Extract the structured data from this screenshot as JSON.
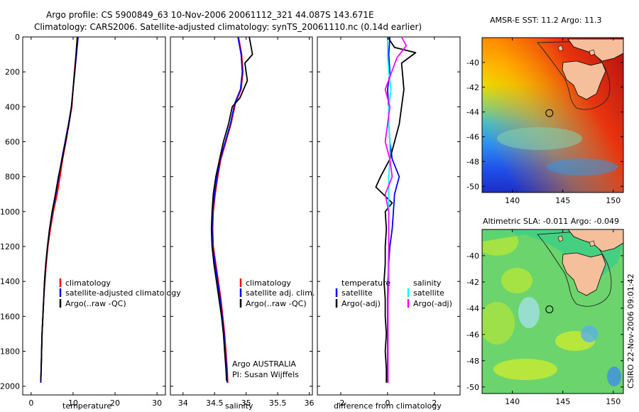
{
  "header": {
    "line1": "Argo profile: CS 5900849_63 10-Nov-2006 20061112_321 44.087S 143.671E",
    "line2": "Climatology: CARS2006. Satellite-adjusted climatology: synTS_20061110.nc (0.14d earlier)"
  },
  "colors": {
    "clim": "#ff0000",
    "sat": "#0000ff",
    "argo": "#000000",
    "sal_sat": "#00ffff",
    "sal_argo": "#ff00ff"
  },
  "chart_data": [
    {
      "id": "temperature",
      "type": "line",
      "xlabel": "temperature",
      "xlim": [
        -2,
        32
      ],
      "ylim": [
        2050,
        0
      ],
      "xticks": [
        0,
        10,
        20,
        30
      ],
      "yticks": [
        0,
        200,
        400,
        600,
        800,
        1000,
        1200,
        1400,
        1600,
        1800,
        2000
      ],
      "series": [
        {
          "name": "climatology",
          "color_key": "clim",
          "points": [
            [
              11,
              0
            ],
            [
              10.7,
              100
            ],
            [
              10.3,
              200
            ],
            [
              10,
              300
            ],
            [
              9.7,
              400
            ],
            [
              9,
              500
            ],
            [
              8.3,
              600
            ],
            [
              7.5,
              700
            ],
            [
              6.9,
              800
            ],
            [
              6.2,
              900
            ],
            [
              5.3,
              1000
            ],
            [
              4.6,
              1100
            ],
            [
              4,
              1200
            ],
            [
              3.6,
              1300
            ],
            [
              3.3,
              1400
            ],
            [
              3,
              1500
            ],
            [
              2.8,
              1600
            ],
            [
              2.6,
              1700
            ],
            [
              2.5,
              1800
            ],
            [
              2.4,
              1900
            ],
            [
              2.3,
              1980
            ]
          ]
        },
        {
          "name": "satellite-adjusted climatology",
          "color_key": "sat",
          "points": [
            [
              11.2,
              0
            ],
            [
              10.8,
              100
            ],
            [
              10.4,
              200
            ],
            [
              10,
              300
            ],
            [
              9.6,
              400
            ],
            [
              8.9,
              500
            ],
            [
              8.1,
              600
            ],
            [
              7.3,
              700
            ],
            [
              6.6,
              800
            ],
            [
              5.9,
              900
            ],
            [
              5.1,
              1000
            ],
            [
              4.4,
              1100
            ],
            [
              3.9,
              1200
            ],
            [
              3.5,
              1300
            ],
            [
              3.2,
              1400
            ],
            [
              3,
              1500
            ],
            [
              2.8,
              1600
            ],
            [
              2.6,
              1700
            ],
            [
              2.5,
              1800
            ],
            [
              2.4,
              1900
            ],
            [
              2.3,
              1980
            ]
          ]
        },
        {
          "name": "Argo(..raw -QC)",
          "color_key": "argo",
          "points": [
            [
              11,
              0
            ],
            [
              10.7,
              100
            ],
            [
              10.4,
              200
            ],
            [
              10,
              300
            ],
            [
              9.6,
              400
            ],
            [
              9,
              500
            ],
            [
              8.2,
              600
            ],
            [
              7.4,
              700
            ],
            [
              6.5,
              800
            ],
            [
              5.8,
              900
            ],
            [
              5,
              1000
            ],
            [
              4.4,
              1100
            ],
            [
              3.9,
              1200
            ],
            [
              3.5,
              1300
            ],
            [
              3.2,
              1400
            ],
            [
              3,
              1500
            ],
            [
              2.8,
              1600
            ],
            [
              2.6,
              1700
            ],
            [
              2.5,
              1800
            ],
            [
              2.4,
              1900
            ],
            [
              2.3,
              1970
            ]
          ]
        }
      ],
      "legend": [
        "climatology",
        "satellite-adjusted climatology",
        "Argo(..raw -QC)"
      ]
    },
    {
      "id": "salinity",
      "type": "line",
      "xlabel": "salinity",
      "xlim": [
        33.8,
        36.05
      ],
      "ylim": [
        2050,
        0
      ],
      "xticks": [
        34,
        34.5,
        35,
        35.5,
        36
      ],
      "series": [
        {
          "name": "climatology",
          "color_key": "clim",
          "points": [
            [
              34.88,
              0
            ],
            [
              34.93,
              100
            ],
            [
              34.95,
              200
            ],
            [
              34.92,
              300
            ],
            [
              34.83,
              380
            ],
            [
              34.76,
              500
            ],
            [
              34.68,
              600
            ],
            [
              34.6,
              700
            ],
            [
              34.55,
              800
            ],
            [
              34.51,
              900
            ],
            [
              34.48,
              1000
            ],
            [
              34.47,
              1100
            ],
            [
              34.48,
              1200
            ],
            [
              34.52,
              1300
            ],
            [
              34.56,
              1400
            ],
            [
              34.6,
              1500
            ],
            [
              34.63,
              1600
            ],
            [
              34.66,
              1700
            ],
            [
              34.68,
              1800
            ],
            [
              34.7,
              1900
            ],
            [
              34.71,
              1980
            ]
          ]
        },
        {
          "name": "satellite adj. clim.",
          "color_key": "sat",
          "points": [
            [
              34.87,
              0
            ],
            [
              34.92,
              100
            ],
            [
              34.94,
              200
            ],
            [
              34.91,
              300
            ],
            [
              34.82,
              380
            ],
            [
              34.75,
              500
            ],
            [
              34.67,
              600
            ],
            [
              34.59,
              700
            ],
            [
              34.54,
              800
            ],
            [
              34.5,
              900
            ],
            [
              34.47,
              1000
            ],
            [
              34.46,
              1100
            ],
            [
              34.47,
              1200
            ],
            [
              34.51,
              1300
            ],
            [
              34.55,
              1400
            ],
            [
              34.59,
              1500
            ],
            [
              34.62,
              1600
            ],
            [
              34.65,
              1700
            ],
            [
              34.67,
              1800
            ],
            [
              34.69,
              1900
            ],
            [
              34.7,
              1980
            ]
          ]
        },
        {
          "name": "Argo(..raw -QC)",
          "color_key": "argo",
          "points": [
            [
              35.05,
              0
            ],
            [
              35.1,
              100
            ],
            [
              34.98,
              150
            ],
            [
              35.02,
              250
            ],
            [
              34.9,
              350
            ],
            [
              34.78,
              400
            ],
            [
              34.72,
              500
            ],
            [
              34.64,
              600
            ],
            [
              34.58,
              700
            ],
            [
              34.52,
              800
            ],
            [
              34.48,
              900
            ],
            [
              34.46,
              1000
            ],
            [
              34.45,
              1100
            ],
            [
              34.46,
              1200
            ],
            [
              34.49,
              1300
            ],
            [
              34.53,
              1400
            ],
            [
              34.57,
              1500
            ],
            [
              34.61,
              1600
            ],
            [
              34.64,
              1700
            ],
            [
              34.66,
              1800
            ],
            [
              34.68,
              1900
            ],
            [
              34.69,
              1970
            ]
          ]
        }
      ],
      "legend": [
        "climatology",
        "satellite adj. clim.",
        "Argo(..raw -QC)"
      ],
      "annotations": [
        "Argo AUSTRALIA",
        "PI: Susan Wijffels"
      ]
    },
    {
      "id": "difference",
      "type": "line",
      "xlabel": "difference from climatology",
      "xlim": [
        -3,
        3.1
      ],
      "ylim": [
        2050,
        0
      ],
      "xticks": [
        -2,
        0,
        2
      ],
      "series": [
        {
          "name": "temperature satellite",
          "color_key": "sat",
          "points": [
            [
              0.1,
              0
            ],
            [
              0.05,
              100
            ],
            [
              0.1,
              200
            ],
            [
              0,
              300
            ],
            [
              0.05,
              400
            ],
            [
              0.05,
              500
            ],
            [
              0.1,
              600
            ],
            [
              0.2,
              700
            ],
            [
              0.5,
              800
            ],
            [
              0.3,
              900
            ],
            [
              0.25,
              1000
            ],
            [
              0.2,
              1100
            ],
            [
              0.1,
              1200
            ],
            [
              0.05,
              1300
            ],
            [
              0,
              1400
            ],
            [
              0,
              1500
            ],
            [
              0,
              1600
            ],
            [
              0,
              1700
            ],
            [
              0,
              1800
            ],
            [
              0,
              1900
            ],
            [
              0,
              1980
            ]
          ]
        },
        {
          "name": "temperature Argo(-adj)",
          "color_key": "argo",
          "points": [
            [
              0,
              0
            ],
            [
              0.3,
              60
            ],
            [
              1.2,
              90
            ],
            [
              0.6,
              150
            ],
            [
              0.7,
              300
            ],
            [
              0.6,
              400
            ],
            [
              0.5,
              500
            ],
            [
              0.3,
              600
            ],
            [
              0.1,
              700
            ],
            [
              -0.3,
              800
            ],
            [
              -0.5,
              860
            ],
            [
              0.2,
              950
            ],
            [
              -0.1,
              1000
            ],
            [
              -0.05,
              1100
            ],
            [
              -0.1,
              1200
            ],
            [
              -0.1,
              1300
            ],
            [
              -0.15,
              1400
            ],
            [
              -0.1,
              1500
            ],
            [
              -0.1,
              1600
            ],
            [
              -0.05,
              1700
            ],
            [
              -0.1,
              1800
            ],
            [
              -0.05,
              1900
            ],
            [
              -0.05,
              1980
            ]
          ]
        },
        {
          "name": "salinity satellite",
          "color_key": "sal_sat",
          "points": [
            [
              0,
              0
            ],
            [
              0,
              100
            ],
            [
              0.05,
              200
            ],
            [
              0.15,
              300
            ],
            [
              0.05,
              400
            ],
            [
              0.05,
              500
            ],
            [
              0.1,
              600
            ],
            [
              0.1,
              700
            ],
            [
              0.05,
              800
            ],
            [
              0.05,
              900
            ],
            [
              0.05,
              1000
            ],
            [
              0.05,
              1100
            ],
            [
              0.05,
              1200
            ],
            [
              0.02,
              1300
            ],
            [
              0.02,
              1400
            ],
            [
              0.02,
              1500
            ],
            [
              0.02,
              1600
            ],
            [
              0.02,
              1700
            ],
            [
              0.02,
              1800
            ],
            [
              0.02,
              1900
            ],
            [
              0.02,
              1980
            ]
          ]
        },
        {
          "name": "salinity Argo(-adj)",
          "color_key": "sal_argo",
          "points": [
            [
              0.6,
              0
            ],
            [
              0.8,
              50
            ],
            [
              0.4,
              120
            ],
            [
              -0.1,
              300
            ],
            [
              0.1,
              400
            ],
            [
              0,
              500
            ],
            [
              -0.1,
              600
            ],
            [
              0.1,
              700
            ],
            [
              0.2,
              800
            ],
            [
              -0.1,
              900
            ],
            [
              0.05,
              1000
            ],
            [
              0.05,
              1100
            ],
            [
              0.05,
              1200
            ],
            [
              0.05,
              1300
            ],
            [
              0.05,
              1400
            ],
            [
              0.02,
              1500
            ],
            [
              0.02,
              1600
            ],
            [
              0.02,
              1700
            ],
            [
              0.02,
              1800
            ],
            [
              0.02,
              1900
            ],
            [
              0.02,
              1980
            ]
          ]
        }
      ],
      "legend_left": {
        "title": "temperature",
        "items": [
          "satellite",
          "Argo(-adj)"
        ]
      },
      "legend_right": {
        "title": "salinity",
        "items": [
          "satellite",
          "Argo(-adj)"
        ]
      }
    },
    {
      "id": "sst-map",
      "type": "heatmap",
      "title": "AMSR-E SST: 11.2 Argo: 11.3",
      "xlim": [
        137,
        151
      ],
      "ylim": [
        -50.5,
        -38
      ],
      "xticks": [
        140,
        145,
        150
      ],
      "yticks": [
        -40,
        -42,
        -44,
        -46,
        -48,
        -50
      ],
      "argo_position": [
        143.671,
        -44.087
      ]
    },
    {
      "id": "sla-map",
      "type": "heatmap",
      "title": "Altimetric SLA: -0.011 Argo: -0.049",
      "xlim": [
        137,
        151
      ],
      "ylim": [
        -50.5,
        -38
      ],
      "xticks": [
        140,
        145,
        150
      ],
      "yticks": [
        -40,
        -42,
        -44,
        -46,
        -48,
        -50
      ],
      "argo_position": [
        143.671,
        -44.087
      ]
    }
  ],
  "footer": {
    "stamp": "CSIRO 22-Nov-2006 09:01:42"
  }
}
